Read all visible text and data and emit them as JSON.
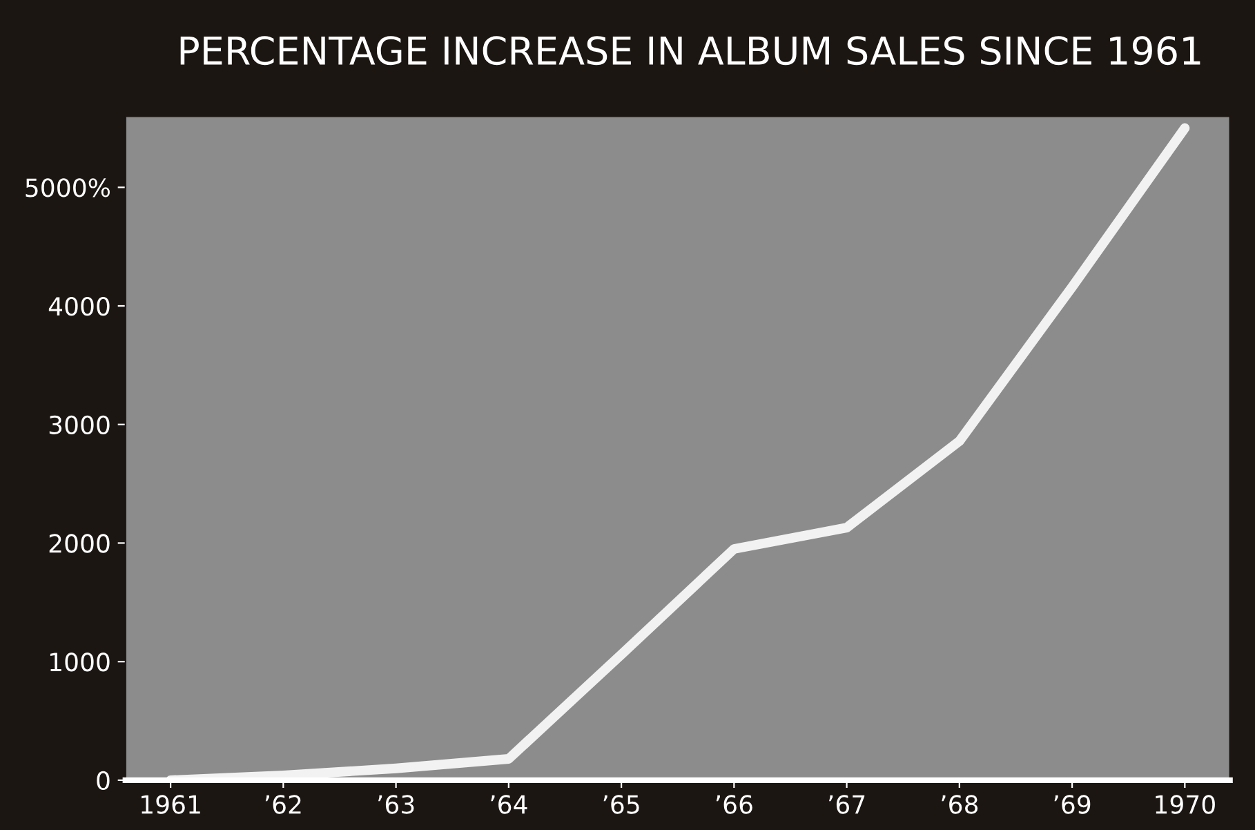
{
  "chart_data": {
    "type": "line",
    "title": "PERCENTAGE INCREASE IN ALBUM SALES SINCE 1961",
    "categories": [
      "1961",
      "’62",
      "’63",
      "’64",
      "’65",
      "’66",
      "’67",
      "’68",
      "’69",
      "1970"
    ],
    "series": [
      {
        "color": "#f2f2f2",
        "values": [
          0,
          40,
          100,
          180,
          1060,
          1950,
          2130,
          2860,
          4160,
          5500
        ]
      }
    ],
    "ylim": [
      0,
      5600
    ],
    "yticks": [
      0,
      1000,
      2000,
      3000,
      4000,
      {
        "value": 5000,
        "label": "5000%"
      }
    ],
    "grid": false,
    "legend": false,
    "marker": "none",
    "line_style": "solid"
  }
}
